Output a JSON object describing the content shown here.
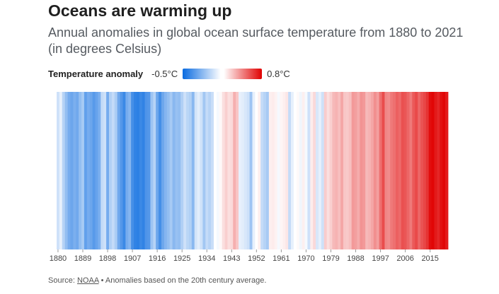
{
  "title": "Oceans are warming up",
  "subtitle": "Annual anomalies in global ocean surface temperature from 1880 to 2021 (in degrees Celsius)",
  "legend": {
    "title": "Temperature anomaly",
    "min_label": "-0.5°C",
    "max_label": "0.8°C"
  },
  "source": {
    "prefix": "Source:",
    "link": "NOAA",
    "note": "• Anomalies based on the 20th century average."
  },
  "colors": {
    "cold": "#0a6be0",
    "neutral": "#ffffff",
    "warm": "#e00000"
  },
  "chart_data": {
    "type": "heatmap",
    "title": "Oceans are warming up",
    "subtitle": "Annual anomalies in global ocean surface temperature from 1880 to 2021 (in degrees Celsius)",
    "x_start": 1880,
    "x_end": 2021,
    "x_ticks": [
      1880,
      1889,
      1898,
      1907,
      1916,
      1925,
      1934,
      1943,
      1952,
      1961,
      1970,
      1979,
      1988,
      1997,
      2006,
      2015
    ],
    "color_range": [
      -0.5,
      0.8
    ],
    "years": [
      1880,
      1881,
      1882,
      1883,
      1884,
      1885,
      1886,
      1887,
      1888,
      1889,
      1890,
      1891,
      1892,
      1893,
      1894,
      1895,
      1896,
      1897,
      1898,
      1899,
      1900,
      1901,
      1902,
      1903,
      1904,
      1905,
      1906,
      1907,
      1908,
      1909,
      1910,
      1911,
      1912,
      1913,
      1914,
      1915,
      1916,
      1917,
      1918,
      1919,
      1920,
      1921,
      1922,
      1923,
      1924,
      1925,
      1926,
      1927,
      1928,
      1929,
      1930,
      1931,
      1932,
      1933,
      1934,
      1935,
      1936,
      1937,
      1938,
      1939,
      1940,
      1941,
      1942,
      1943,
      1944,
      1945,
      1946,
      1947,
      1948,
      1949,
      1950,
      1951,
      1952,
      1953,
      1954,
      1955,
      1956,
      1957,
      1958,
      1959,
      1960,
      1961,
      1962,
      1963,
      1964,
      1965,
      1966,
      1967,
      1968,
      1969,
      1970,
      1971,
      1972,
      1973,
      1974,
      1975,
      1976,
      1977,
      1978,
      1979,
      1980,
      1981,
      1982,
      1983,
      1984,
      1985,
      1986,
      1987,
      1988,
      1989,
      1990,
      1991,
      1992,
      1993,
      1994,
      1995,
      1996,
      1997,
      1998,
      1999,
      2000,
      2001,
      2002,
      2003,
      2004,
      2005,
      2006,
      2007,
      2008,
      2009,
      2010,
      2011,
      2012,
      2013,
      2014,
      2015,
      2016,
      2017,
      2018,
      2019,
      2020,
      2021
    ],
    "values": [
      -0.1,
      -0.05,
      -0.15,
      -0.22,
      -0.28,
      -0.3,
      -0.27,
      -0.29,
      -0.22,
      -0.18,
      -0.32,
      -0.28,
      -0.3,
      -0.34,
      -0.31,
      -0.27,
      -0.12,
      -0.1,
      -0.28,
      -0.16,
      -0.12,
      -0.17,
      -0.29,
      -0.35,
      -0.4,
      -0.28,
      -0.25,
      -0.38,
      -0.42,
      -0.43,
      -0.4,
      -0.42,
      -0.36,
      -0.35,
      -0.2,
      -0.15,
      -0.3,
      -0.38,
      -0.3,
      -0.25,
      -0.22,
      -0.18,
      -0.24,
      -0.21,
      -0.22,
      -0.16,
      -0.1,
      -0.14,
      -0.16,
      -0.24,
      -0.09,
      -0.06,
      -0.1,
      -0.19,
      -0.12,
      -0.15,
      -0.11,
      0.0,
      -0.02,
      0.02,
      0.1,
      0.15,
      0.1,
      0.12,
      0.25,
      0.18,
      -0.05,
      -0.06,
      -0.08,
      -0.1,
      -0.2,
      -0.05,
      0.0,
      0.05,
      -0.12,
      -0.15,
      -0.18,
      0.05,
      0.06,
      0.04,
      -0.02,
      0.03,
      0.05,
      0.08,
      -0.12,
      -0.05,
      0.0,
      0.02,
      -0.03,
      0.05,
      -0.02,
      -0.1,
      0.06,
      0.12,
      -0.08,
      -0.05,
      -0.1,
      0.16,
      0.1,
      0.15,
      0.22,
      0.24,
      0.2,
      0.28,
      0.18,
      0.17,
      0.2,
      0.32,
      0.3,
      0.26,
      0.34,
      0.32,
      0.22,
      0.24,
      0.28,
      0.35,
      0.3,
      0.45,
      0.56,
      0.38,
      0.36,
      0.42,
      0.45,
      0.5,
      0.47,
      0.55,
      0.53,
      0.48,
      0.42,
      0.52,
      0.57,
      0.48,
      0.54,
      0.58,
      0.64,
      0.76,
      0.78,
      0.72,
      0.68,
      0.75,
      0.78,
      0.72
    ]
  }
}
